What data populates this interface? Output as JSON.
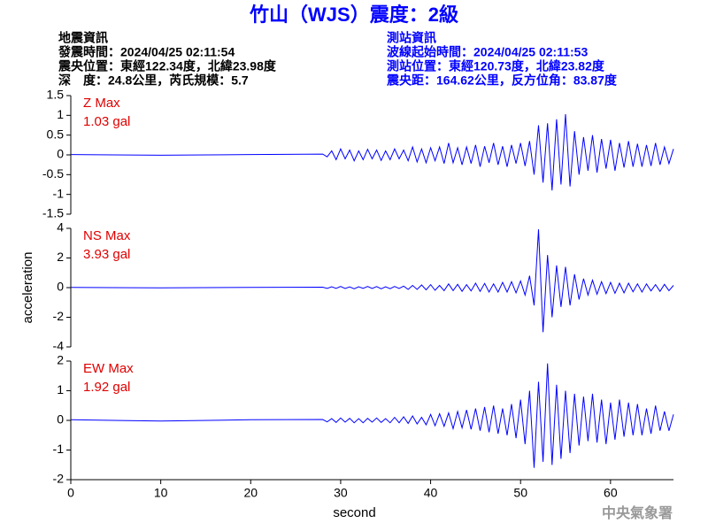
{
  "header": {
    "title": "竹山（WJS）震度：2級",
    "left": [
      "地震資訊",
      "發震時間：2024/04/25 02:11:54",
      "震央位置：東經122.34度，北緯23.98度",
      "深　度：24.8公里，芮氏規模：5.7"
    ],
    "right": [
      "測站資訊",
      "波線起始時間：2024/04/25 02:11:53",
      "測站位置：東經120.73度，北緯23.82度",
      "震央距：164.62公里，反方位角：83.87度"
    ],
    "footer": "中央氣象署"
  },
  "chart_data": [
    {
      "type": "line",
      "annotations": [
        "Z Max",
        "1.03 gal"
      ],
      "color": "#0000ff",
      "xlim": [
        0,
        67
      ],
      "ylim": [
        -1.5,
        1.5
      ],
      "yticks": [
        1.5,
        1,
        0.5,
        0,
        -0.5,
        -1,
        -1.5
      ],
      "x": [
        0,
        10,
        20,
        28,
        28.5,
        29,
        29.5,
        30,
        30.5,
        31,
        31.5,
        32,
        32.5,
        33,
        33.5,
        34,
        34.5,
        35,
        35.5,
        36,
        36.5,
        37,
        37.5,
        38,
        38.5,
        39,
        39.5,
        40,
        40.5,
        41,
        41.5,
        42,
        42.5,
        43,
        43.5,
        44,
        44.5,
        45,
        45.5,
        46,
        46.5,
        47,
        47.5,
        48,
        48.5,
        49,
        49.5,
        50,
        50.5,
        51,
        51.5,
        52,
        52.5,
        53,
        53.5,
        54,
        54.5,
        55,
        55.5,
        56,
        56.5,
        57,
        57.5,
        58,
        58.5,
        59,
        59.5,
        60,
        60.5,
        61,
        61.5,
        62,
        62.5,
        63,
        63.5,
        64,
        64.5,
        65,
        65.5,
        66,
        66.5,
        67
      ],
      "values": [
        0.01,
        -0.01,
        0.01,
        0.02,
        -0.05,
        0.1,
        -0.12,
        0.15,
        -0.1,
        0.12,
        -0.15,
        0.1,
        -0.12,
        0.14,
        -0.1,
        0.12,
        -0.14,
        0.1,
        -0.12,
        0.15,
        -0.1,
        0.12,
        -0.15,
        0.2,
        -0.18,
        0.15,
        -0.2,
        0.18,
        -0.15,
        0.2,
        -0.22,
        0.3,
        -0.2,
        0.18,
        -0.25,
        0.2,
        -0.22,
        0.25,
        -0.3,
        0.22,
        -0.2,
        0.3,
        -0.25,
        0.22,
        -0.3,
        0.25,
        -0.22,
        0.3,
        -0.28,
        0.35,
        -0.5,
        0.75,
        -0.7,
        0.8,
        -0.9,
        0.9,
        -0.75,
        1.03,
        -0.8,
        0.6,
        -0.5,
        0.45,
        -0.4,
        0.5,
        -0.45,
        0.4,
        -0.35,
        0.38,
        -0.4,
        0.3,
        -0.32,
        0.35,
        -0.3,
        0.28,
        -0.3,
        0.25,
        -0.28,
        0.3,
        -0.25,
        0.2,
        -0.22,
        0.15
      ]
    },
    {
      "type": "line",
      "annotations": [
        "NS Max",
        "3.93 gal"
      ],
      "ylabel": "acceleration",
      "color": "#0000ff",
      "xlim": [
        0,
        67
      ],
      "ylim": [
        -4,
        4
      ],
      "yticks": [
        4,
        2,
        0,
        -2,
        -4
      ],
      "x": [
        0,
        10,
        20,
        28,
        28.5,
        29,
        29.5,
        30,
        30.5,
        31,
        31.5,
        32,
        32.5,
        33,
        33.5,
        34,
        34.5,
        35,
        35.5,
        36,
        36.5,
        37,
        37.5,
        38,
        38.5,
        39,
        39.5,
        40,
        40.5,
        41,
        41.5,
        42,
        42.5,
        43,
        43.5,
        44,
        44.5,
        45,
        45.5,
        46,
        46.5,
        47,
        47.5,
        48,
        48.5,
        49,
        49.5,
        50,
        50.5,
        51,
        51.5,
        52,
        52.5,
        53,
        53.5,
        54,
        54.5,
        55,
        55.5,
        56,
        56.5,
        57,
        57.5,
        58,
        58.5,
        59,
        59.5,
        60,
        60.5,
        61,
        61.5,
        62,
        62.5,
        63,
        63.5,
        64,
        64.5,
        65,
        65.5,
        66,
        66.5,
        67
      ],
      "values": [
        0.02,
        -0.02,
        0.02,
        0.03,
        -0.05,
        0.06,
        -0.05,
        0.08,
        -0.06,
        0.05,
        -0.08,
        0.06,
        -0.05,
        0.08,
        -0.06,
        0.07,
        -0.08,
        0.06,
        -0.07,
        0.08,
        -0.06,
        0.1,
        -0.12,
        0.15,
        -0.12,
        0.18,
        -0.15,
        0.2,
        -0.18,
        0.15,
        -0.2,
        0.25,
        -0.2,
        0.22,
        -0.25,
        0.2,
        -0.22,
        0.3,
        -0.25,
        0.28,
        -0.3,
        0.25,
        -0.3,
        0.35,
        -0.3,
        0.4,
        -0.35,
        0.45,
        -0.5,
        0.8,
        -1.2,
        3.93,
        -3.0,
        2.2,
        -2.0,
        1.5,
        -1.3,
        1.4,
        -1.2,
        0.9,
        -0.8,
        0.6,
        -0.5,
        0.5,
        -0.45,
        0.4,
        -0.4,
        0.35,
        -0.38,
        0.3,
        -0.35,
        0.3,
        -0.28,
        0.25,
        -0.3,
        0.25,
        -0.22,
        0.2,
        -0.25,
        0.22,
        -0.2,
        0.15
      ]
    },
    {
      "type": "line",
      "annotations": [
        "EW Max",
        "1.92 gal"
      ],
      "xlabel": "second",
      "color": "#0000ff",
      "xlim": [
        0,
        67
      ],
      "xticks": [
        0,
        10,
        20,
        30,
        40,
        50,
        60
      ],
      "ylim": [
        -2,
        2
      ],
      "yticks": [
        2,
        1,
        0,
        -1,
        -2
      ],
      "x": [
        0,
        10,
        20,
        28,
        28.5,
        29,
        29.5,
        30,
        30.5,
        31,
        31.5,
        32,
        32.5,
        33,
        33.5,
        34,
        34.5,
        35,
        35.5,
        36,
        36.5,
        37,
        37.5,
        38,
        38.5,
        39,
        39.5,
        40,
        40.5,
        41,
        41.5,
        42,
        42.5,
        43,
        43.5,
        44,
        44.5,
        45,
        45.5,
        46,
        46.5,
        47,
        47.5,
        48,
        48.5,
        49,
        49.5,
        50,
        50.5,
        51,
        51.5,
        52,
        52.5,
        53,
        53.5,
        54,
        54.5,
        55,
        55.5,
        56,
        56.5,
        57,
        57.5,
        58,
        58.5,
        59,
        59.5,
        60,
        60.5,
        61,
        61.5,
        62,
        62.5,
        63,
        63.5,
        64,
        64.5,
        65,
        65.5,
        66,
        66.5,
        67
      ],
      "values": [
        0.02,
        -0.02,
        0.02,
        0.03,
        -0.05,
        0.06,
        -0.07,
        0.08,
        -0.06,
        0.07,
        -0.08,
        0.06,
        -0.08,
        0.07,
        -0.06,
        0.08,
        -0.07,
        0.06,
        -0.08,
        0.1,
        -0.08,
        0.12,
        -0.1,
        0.15,
        -0.12,
        0.1,
        -0.15,
        0.2,
        -0.18,
        0.22,
        -0.2,
        0.25,
        -0.28,
        0.3,
        -0.25,
        0.35,
        -0.3,
        0.4,
        -0.35,
        0.45,
        -0.4,
        0.5,
        -0.45,
        0.4,
        -0.5,
        0.55,
        -0.6,
        0.7,
        -0.8,
        1.0,
        -1.6,
        1.3,
        -1.4,
        1.92,
        -1.5,
        1.2,
        -1.3,
        1.0,
        -1.1,
        0.9,
        -0.85,
        0.8,
        -0.7,
        0.9,
        -0.75,
        0.7,
        -0.8,
        0.6,
        -0.65,
        0.7,
        -0.55,
        0.6,
        -0.5,
        0.55,
        -0.5,
        0.4,
        -0.45,
        0.5,
        -0.35,
        0.3,
        -0.35,
        0.2
      ]
    }
  ]
}
